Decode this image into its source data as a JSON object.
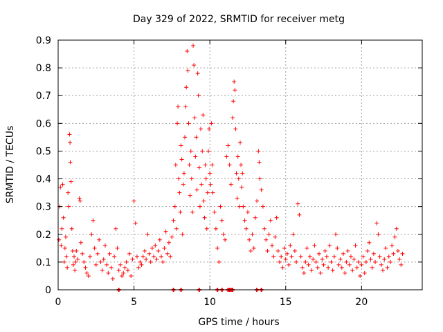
{
  "chart_data": {
    "type": "scatter",
    "title": "Day 329 of 2022, SRMTID for receiver metg",
    "xlabel": "GPS time / hours",
    "ylabel": "SRMTID / TECUs",
    "xlim": [
      0,
      24
    ],
    "ylim": [
      0,
      0.9
    ],
    "x_ticks": [
      0,
      5,
      10,
      15,
      20
    ],
    "y_ticks": [
      0,
      0.1,
      0.2,
      0.3,
      0.4,
      0.5,
      0.6,
      0.7,
      0.8,
      0.9
    ],
    "x_tick_labels": [
      "0",
      "5",
      "10",
      "15",
      "20"
    ],
    "y_tick_labels": [
      "0",
      "0.1",
      "0.2",
      "0.3",
      "0.4",
      "0.5",
      "0.6",
      "0.7",
      "0.8",
      "0.9"
    ],
    "grid": true,
    "marker": "+",
    "color": "#ff0000",
    "series": [
      {
        "name": "SRMTID",
        "points": [
          [
            0.05,
            0.18
          ],
          [
            0.1,
            0.3
          ],
          [
            0.15,
            0.37
          ],
          [
            0.2,
            0.16
          ],
          [
            0.25,
            0.22
          ],
          [
            0.3,
            0.38
          ],
          [
            0.35,
            0.26
          ],
          [
            0.4,
            0.1
          ],
          [
            0.45,
            0.15
          ],
          [
            0.5,
            0.19
          ],
          [
            0.55,
            0.12
          ],
          [
            0.6,
            0.08
          ],
          [
            0.65,
            0.35
          ],
          [
            0.7,
            0.3
          ],
          [
            0.75,
            0.56
          ],
          [
            0.78,
            0.53
          ],
          [
            0.8,
            0.46
          ],
          [
            0.85,
            0.39
          ],
          [
            0.9,
            0.22
          ],
          [
            0.95,
            0.14
          ],
          [
            1.0,
            0.09
          ],
          [
            1.05,
            0.12
          ],
          [
            1.1,
            0.07
          ],
          [
            1.15,
            0.1
          ],
          [
            1.2,
            0.14
          ],
          [
            1.3,
            0.11
          ],
          [
            1.4,
            0.33
          ],
          [
            1.45,
            0.32
          ],
          [
            1.5,
            0.17
          ],
          [
            1.6,
            0.13
          ],
          [
            1.7,
            0.1
          ],
          [
            1.8,
            0.08
          ],
          [
            1.9,
            0.06
          ],
          [
            2.0,
            0.05
          ],
          [
            2.1,
            0.12
          ],
          [
            2.2,
            0.2
          ],
          [
            2.3,
            0.25
          ],
          [
            2.4,
            0.15
          ],
          [
            2.5,
            0.09
          ],
          [
            2.6,
            0.13
          ],
          [
            2.7,
            0.18
          ],
          [
            2.8,
            0.1
          ],
          [
            2.9,
            0.07
          ],
          [
            3.0,
            0.11
          ],
          [
            3.1,
            0.16
          ],
          [
            3.2,
            0.09
          ],
          [
            3.3,
            0.06
          ],
          [
            3.4,
            0.13
          ],
          [
            3.5,
            0.08
          ],
          [
            3.6,
            0.04
          ],
          [
            3.7,
            0.12
          ],
          [
            3.8,
            0.22
          ],
          [
            3.9,
            0.15
          ],
          [
            4.0,
            0.07
          ],
          [
            4.1,
            0.09
          ],
          [
            4.2,
            0.05
          ],
          [
            4.3,
            0.06
          ],
          [
            4.4,
            0.08
          ],
          [
            4.5,
            0.1
          ],
          [
            4.6,
            0.07
          ],
          [
            4.7,
            0.13
          ],
          [
            4.8,
            0.05
          ],
          [
            4.9,
            0.11
          ],
          [
            5.0,
            0.32
          ],
          [
            5.1,
            0.24
          ],
          [
            5.2,
            0.12
          ],
          [
            5.3,
            0.08
          ],
          [
            5.4,
            0.1
          ],
          [
            5.5,
            0.09
          ],
          [
            5.6,
            0.12
          ],
          [
            5.7,
            0.14
          ],
          [
            5.8,
            0.11
          ],
          [
            5.9,
            0.2
          ],
          [
            6.0,
            0.13
          ],
          [
            6.1,
            0.1
          ],
          [
            6.2,
            0.15
          ],
          [
            6.3,
            0.12
          ],
          [
            6.4,
            0.16
          ],
          [
            6.5,
            0.11
          ],
          [
            6.6,
            0.14
          ],
          [
            6.7,
            0.18
          ],
          [
            6.8,
            0.12
          ],
          [
            6.9,
            0.1
          ],
          [
            7.0,
            0.15
          ],
          [
            7.1,
            0.21
          ],
          [
            7.2,
            0.13
          ],
          [
            7.3,
            0.17
          ],
          [
            7.4,
            0.12
          ],
          [
            7.5,
            0.19
          ],
          [
            7.6,
            0.25
          ],
          [
            7.7,
            0.3
          ],
          [
            7.75,
            0.45
          ],
          [
            7.8,
            0.22
          ],
          [
            7.85,
            0.6
          ],
          [
            7.9,
            0.66
          ],
          [
            7.95,
            0.4
          ],
          [
            8.0,
            0.35
          ],
          [
            8.05,
            0.28
          ],
          [
            8.1,
            0.52
          ],
          [
            8.15,
            0.47
          ],
          [
            8.2,
            0.2
          ],
          [
            8.25,
            0.38
          ],
          [
            8.3,
            0.42
          ],
          [
            8.35,
            0.55
          ],
          [
            8.4,
            0.66
          ],
          [
            8.45,
            0.73
          ],
          [
            8.5,
            0.86
          ],
          [
            8.55,
            0.79
          ],
          [
            8.6,
            0.6
          ],
          [
            8.65,
            0.45
          ],
          [
            8.7,
            0.34
          ],
          [
            8.75,
            0.5
          ],
          [
            8.8,
            0.4
          ],
          [
            8.85,
            0.28
          ],
          [
            8.9,
            0.88
          ],
          [
            8.95,
            0.81
          ],
          [
            9.0,
            0.62
          ],
          [
            9.05,
            0.48
          ],
          [
            9.1,
            0.55
          ],
          [
            9.15,
            0.36
          ],
          [
            9.2,
            0.78
          ],
          [
            9.25,
            0.7
          ],
          [
            9.3,
            0.44
          ],
          [
            9.35,
            0.3
          ],
          [
            9.4,
            0.58
          ],
          [
            9.45,
            0.38
          ],
          [
            9.5,
            0.5
          ],
          [
            9.55,
            0.63
          ],
          [
            9.6,
            0.32
          ],
          [
            9.65,
            0.26
          ],
          [
            9.7,
            0.45
          ],
          [
            9.75,
            0.4
          ],
          [
            9.8,
            0.22
          ],
          [
            9.85,
            0.35
          ],
          [
            9.9,
            0.5
          ],
          [
            9.95,
            0.58
          ],
          [
            10.0,
            0.42
          ],
          [
            10.05,
            0.38
          ],
          [
            10.1,
            0.6
          ],
          [
            10.15,
            0.45
          ],
          [
            10.2,
            0.35
          ],
          [
            10.3,
            0.28
          ],
          [
            10.4,
            0.22
          ],
          [
            10.5,
            0.15
          ],
          [
            10.6,
            0.1
          ],
          [
            10.7,
            0.3
          ],
          [
            10.8,
            0.25
          ],
          [
            10.9,
            0.2
          ],
          [
            11.0,
            0.18
          ],
          [
            11.1,
            0.48
          ],
          [
            11.2,
            0.52
          ],
          [
            11.3,
            0.45
          ],
          [
            11.4,
            0.38
          ],
          [
            11.5,
            0.62
          ],
          [
            11.55,
            0.68
          ],
          [
            11.6,
            0.75
          ],
          [
            11.65,
            0.72
          ],
          [
            11.7,
            0.58
          ],
          [
            11.75,
            0.42
          ],
          [
            11.8,
            0.33
          ],
          [
            11.85,
            0.48
          ],
          [
            11.9,
            0.4
          ],
          [
            11.95,
            0.3
          ],
          [
            12.0,
            0.53
          ],
          [
            12.05,
            0.45
          ],
          [
            12.1,
            0.37
          ],
          [
            12.15,
            0.42
          ],
          [
            12.2,
            0.3
          ],
          [
            12.3,
            0.25
          ],
          [
            12.4,
            0.22
          ],
          [
            12.5,
            0.28
          ],
          [
            12.6,
            0.18
          ],
          [
            12.7,
            0.14
          ],
          [
            12.8,
            0.2
          ],
          [
            12.9,
            0.15
          ],
          [
            13.0,
            0.26
          ],
          [
            13.1,
            0.32
          ],
          [
            13.2,
            0.5
          ],
          [
            13.25,
            0.46
          ],
          [
            13.3,
            0.4
          ],
          [
            13.4,
            0.36
          ],
          [
            13.5,
            0.3
          ],
          [
            13.6,
            0.22
          ],
          [
            13.7,
            0.18
          ],
          [
            13.8,
            0.14
          ],
          [
            13.9,
            0.2
          ],
          [
            14.0,
            0.25
          ],
          [
            14.1,
            0.16
          ],
          [
            14.2,
            0.12
          ],
          [
            14.3,
            0.19
          ],
          [
            14.4,
            0.26
          ],
          [
            14.5,
            0.14
          ],
          [
            14.6,
            0.1
          ],
          [
            14.7,
            0.12
          ],
          [
            14.8,
            0.08
          ],
          [
            14.9,
            0.15
          ],
          [
            15.0,
            0.11
          ],
          [
            15.1,
            0.13
          ],
          [
            15.2,
            0.09
          ],
          [
            15.3,
            0.16
          ],
          [
            15.4,
            0.12
          ],
          [
            15.5,
            0.2
          ],
          [
            15.6,
            0.14
          ],
          [
            15.7,
            0.1
          ],
          [
            15.8,
            0.31
          ],
          [
            15.9,
            0.27
          ],
          [
            16.0,
            0.12
          ],
          [
            16.1,
            0.08
          ],
          [
            16.2,
            0.06
          ],
          [
            16.3,
            0.1
          ],
          [
            16.4,
            0.15
          ],
          [
            16.5,
            0.09
          ],
          [
            16.6,
            0.12
          ],
          [
            16.7,
            0.07
          ],
          [
            16.8,
            0.11
          ],
          [
            16.9,
            0.16
          ],
          [
            17.0,
            0.1
          ],
          [
            17.1,
            0.08
          ],
          [
            17.2,
            0.13
          ],
          [
            17.3,
            0.06
          ],
          [
            17.4,
            0.11
          ],
          [
            17.5,
            0.09
          ],
          [
            17.6,
            0.14
          ],
          [
            17.7,
            0.12
          ],
          [
            17.8,
            0.08
          ],
          [
            17.9,
            0.16
          ],
          [
            18.0,
            0.1
          ],
          [
            18.1,
            0.07
          ],
          [
            18.2,
            0.12
          ],
          [
            18.3,
            0.2
          ],
          [
            18.4,
            0.15
          ],
          [
            18.5,
            0.09
          ],
          [
            18.6,
            0.11
          ],
          [
            18.7,
            0.08
          ],
          [
            18.8,
            0.13
          ],
          [
            18.9,
            0.06
          ],
          [
            19.0,
            0.1
          ],
          [
            19.1,
            0.14
          ],
          [
            19.2,
            0.09
          ],
          [
            19.3,
            0.12
          ],
          [
            19.4,
            0.07
          ],
          [
            19.5,
            0.11
          ],
          [
            19.6,
            0.16
          ],
          [
            19.7,
            0.08
          ],
          [
            19.8,
            0.1
          ],
          [
            19.9,
            0.05
          ],
          [
            20.0,
            0.09
          ],
          [
            20.1,
            0.12
          ],
          [
            20.2,
            0.06
          ],
          [
            20.3,
            0.1
          ],
          [
            20.4,
            0.14
          ],
          [
            20.5,
            0.17
          ],
          [
            20.6,
            0.11
          ],
          [
            20.7,
            0.08
          ],
          [
            20.8,
            0.13
          ],
          [
            20.9,
            0.1
          ],
          [
            21.0,
            0.24
          ],
          [
            21.1,
            0.2
          ],
          [
            21.2,
            0.12
          ],
          [
            21.3,
            0.09
          ],
          [
            21.4,
            0.07
          ],
          [
            21.5,
            0.11
          ],
          [
            21.6,
            0.15
          ],
          [
            21.7,
            0.08
          ],
          [
            21.8,
            0.12
          ],
          [
            21.9,
            0.1
          ],
          [
            22.0,
            0.16
          ],
          [
            22.1,
            0.13
          ],
          [
            22.2,
            0.19
          ],
          [
            22.3,
            0.22
          ],
          [
            22.4,
            0.14
          ],
          [
            22.5,
            0.11
          ],
          [
            22.6,
            0.09
          ],
          [
            22.7,
            0.13
          ]
        ]
      }
    ],
    "zero_markers": [
      4.0,
      7.6,
      8.1,
      9.3,
      10.5,
      10.8,
      11.2,
      11.3,
      11.4,
      11.5,
      13.1,
      13.4
    ]
  }
}
